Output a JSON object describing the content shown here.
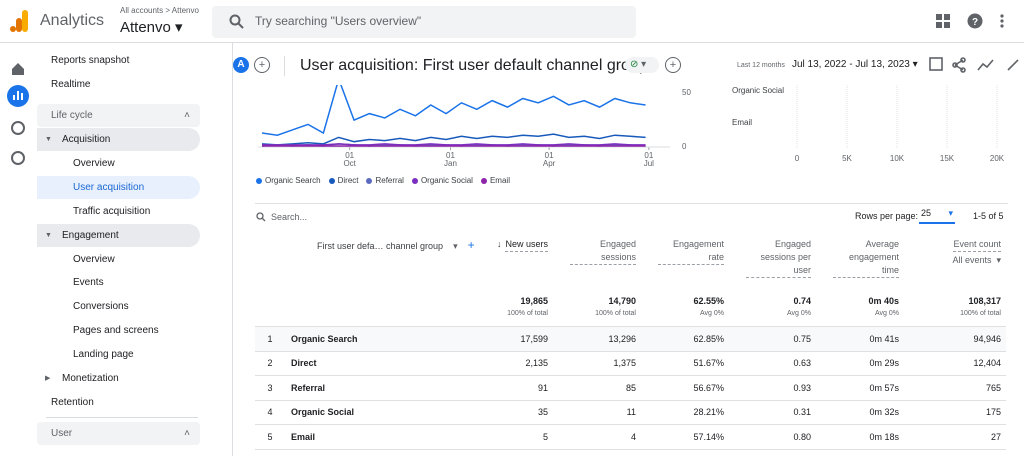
{
  "topbar": {
    "product": "Analytics",
    "breadcrumb": "All accounts > Attenvo",
    "property": "Attenvo",
    "search_placeholder": "Try searching \"Users overview\""
  },
  "sidebar": {
    "items": [
      {
        "label": "Reports snapshot",
        "kind": "link"
      },
      {
        "label": "Realtime",
        "kind": "link"
      },
      {
        "label": "Life cycle",
        "kind": "section"
      },
      {
        "label": "Acquisition",
        "kind": "group",
        "expanded": true
      },
      {
        "label": "Overview",
        "kind": "child"
      },
      {
        "label": "User acquisition",
        "kind": "child",
        "active": true
      },
      {
        "label": "Traffic acquisition",
        "kind": "child"
      },
      {
        "label": "Engagement",
        "kind": "group",
        "expanded": true
      },
      {
        "label": "Overview",
        "kind": "child"
      },
      {
        "label": "Events",
        "kind": "child"
      },
      {
        "label": "Conversions",
        "kind": "child"
      },
      {
        "label": "Pages and screens",
        "kind": "child"
      },
      {
        "label": "Landing page",
        "kind": "child"
      },
      {
        "label": "Monetization",
        "kind": "group",
        "expanded": false
      },
      {
        "label": "Retention",
        "kind": "link"
      },
      {
        "label": "User",
        "kind": "section"
      }
    ]
  },
  "header": {
    "avatar": "A",
    "title": "User acquisition: First user default channel group",
    "range_label": "Last 12 months",
    "date_range": "Jul 13, 2022 - Jul 13, 2023"
  },
  "chart": {
    "type": "line",
    "xlim": [
      0,
      365
    ],
    "ylim": [
      0,
      60
    ],
    "yticks": [
      0,
      50
    ],
    "xticks": [
      {
        "value": 80,
        "day": "01",
        "month": "Oct"
      },
      {
        "value": 172,
        "day": "01",
        "month": "Jan"
      },
      {
        "value": 262,
        "day": "01",
        "month": "Apr"
      },
      {
        "value": 353,
        "day": "01",
        "month": "Jul"
      }
    ],
    "x": [
      0,
      14,
      28,
      42,
      56,
      70,
      84,
      98,
      112,
      126,
      140,
      154,
      168,
      182,
      196,
      210,
      224,
      238,
      252,
      266,
      280,
      294,
      308,
      322,
      336,
      350
    ],
    "series": [
      {
        "name": "Organic Search",
        "color": "#1a73e8",
        "values": [
          12,
          10,
          15,
          20,
          12,
          62,
          24,
          30,
          26,
          34,
          28,
          38,
          30,
          40,
          34,
          42,
          36,
          44,
          40,
          46,
          38,
          42,
          36,
          44,
          40,
          38
        ]
      },
      {
        "name": "Direct",
        "color": "#185abc",
        "values": [
          2,
          1,
          2,
          3,
          2,
          8,
          4,
          6,
          5,
          7,
          5,
          8,
          6,
          9,
          7,
          9,
          8,
          10,
          9,
          11,
          8,
          9,
          7,
          10,
          9,
          8
        ]
      },
      {
        "name": "Referral",
        "color": "#5c6bc0",
        "values": [
          0,
          1,
          0,
          1,
          0,
          2,
          1,
          0,
          1,
          1,
          0,
          1,
          1,
          0,
          1,
          1,
          0,
          1,
          1,
          0,
          1,
          1,
          0,
          1,
          1,
          0
        ]
      },
      {
        "name": "Organic Social",
        "color": "#7b2fbe",
        "values": [
          1,
          1,
          1,
          1,
          1,
          2,
          1,
          1,
          2,
          1,
          1,
          2,
          1,
          1,
          2,
          1,
          1,
          2,
          1,
          1,
          2,
          1,
          1,
          2,
          1,
          1
        ]
      },
      {
        "name": "Email",
        "color": "#8e24aa",
        "values": [
          0,
          0,
          0,
          0,
          0,
          0,
          0,
          0,
          0,
          0,
          0,
          0,
          0,
          0,
          0,
          0,
          0,
          0,
          0,
          0,
          0,
          0,
          0,
          0,
          0,
          0
        ]
      }
    ]
  },
  "bar_chart": {
    "type": "bar",
    "categories": [
      "Organic Social",
      "Email"
    ],
    "xlim": [
      0,
      20000
    ],
    "xticks": [
      0,
      {
        "value": 5000,
        "label": "5K"
      },
      {
        "value": 10000,
        "label": "10K"
      },
      {
        "value": 15000,
        "label": "15K"
      },
      {
        "value": 20000,
        "label": "20K"
      }
    ]
  },
  "table": {
    "search": "Search...",
    "rows_per_page_label": "Rows per page:",
    "rows_per_page": "25",
    "pagination": "1-5 of 5",
    "dimension_header": "First user defa… channel group",
    "metrics": [
      {
        "label": "New users",
        "sorted": true
      },
      {
        "label": "Engaged sessions"
      },
      {
        "label": "Engagement rate"
      },
      {
        "label": "Engaged sessions per user"
      },
      {
        "label": "Average engagement time"
      },
      {
        "label": "Event count",
        "sub": "All events"
      }
    ],
    "totals": [
      {
        "value": "19,865",
        "note": "100% of total"
      },
      {
        "value": "14,790",
        "note": "100% of total"
      },
      {
        "value": "62.55%",
        "note": "Avg 0%"
      },
      {
        "value": "0.74",
        "note": "Avg 0%"
      },
      {
        "value": "0m 40s",
        "note": "Avg 0%"
      },
      {
        "value": "108,317",
        "note": "100% of total"
      }
    ],
    "rows": [
      [
        "1",
        "Organic Search",
        "17,599",
        "13,296",
        "62.85%",
        "0.75",
        "0m 41s",
        "94,946"
      ],
      [
        "2",
        "Direct",
        "2,135",
        "1,375",
        "51.67%",
        "0.63",
        "0m 29s",
        "12,404"
      ],
      [
        "3",
        "Referral",
        "91",
        "85",
        "56.67%",
        "0.93",
        "0m 57s",
        "765"
      ],
      [
        "4",
        "Organic Social",
        "35",
        "11",
        "28.21%",
        "0.31",
        "0m 32s",
        "175"
      ],
      [
        "5",
        "Email",
        "5",
        "4",
        "57.14%",
        "0.80",
        "0m 18s",
        "27"
      ]
    ]
  }
}
